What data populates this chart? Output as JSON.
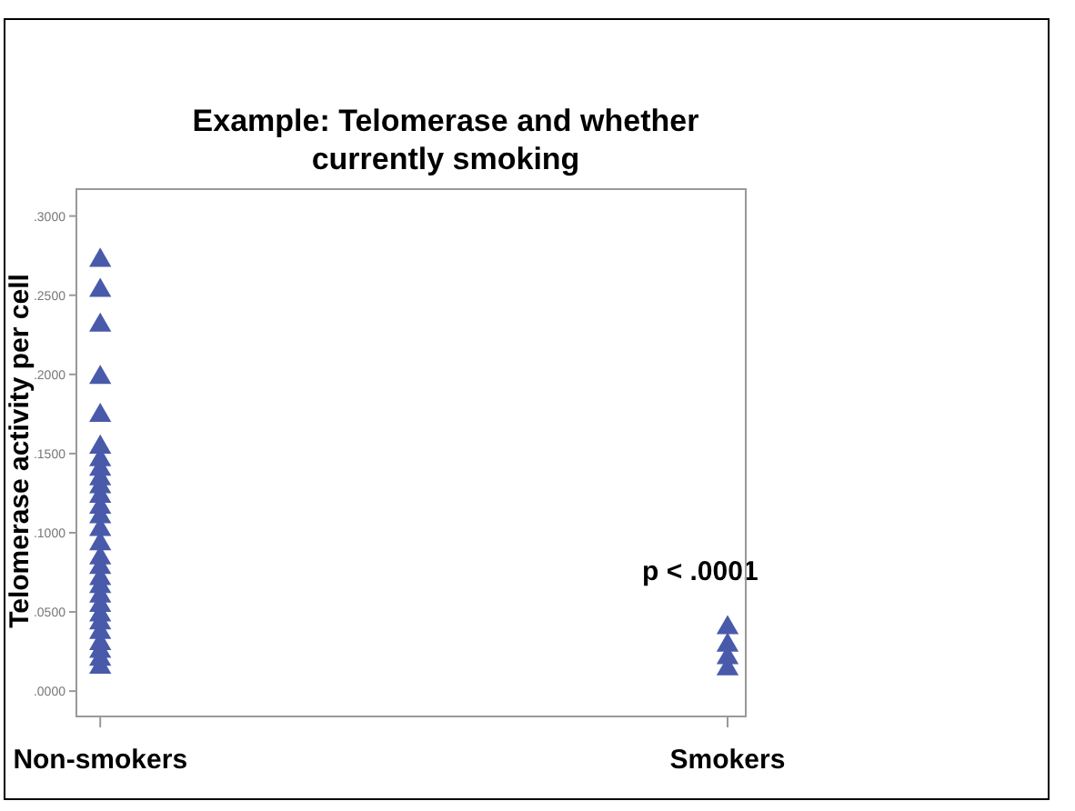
{
  "chart_data": {
    "type": "scatter",
    "title": "Example: Telomerase and whether currently smoking",
    "ylabel": "Telomerase activity per cell",
    "categories": [
      "Non-smokers",
      "Smokers"
    ],
    "series": [
      {
        "color": "#4a5aaa",
        "x": [
          "Non-smokers",
          "Non-smokers",
          "Non-smokers",
          "Non-smokers",
          "Non-smokers",
          "Non-smokers",
          "Non-smokers",
          "Non-smokers",
          "Non-smokers",
          "Non-smokers",
          "Non-smokers",
          "Non-smokers",
          "Non-smokers",
          "Non-smokers",
          "Non-smokers",
          "Non-smokers",
          "Non-smokers",
          "Non-smokers",
          "Non-smokers",
          "Non-smokers",
          "Non-smokers",
          "Non-smokers",
          "Non-smokers",
          "Non-smokers",
          "Non-smokers",
          "Non-smokers",
          "Non-smokers",
          "Non-smokers",
          "Smokers",
          "Smokers",
          "Smokers",
          "Smokers"
        ],
        "values": [
          0.272,
          0.253,
          0.231,
          0.198,
          0.174,
          0.154,
          0.146,
          0.14,
          0.134,
          0.129,
          0.123,
          0.116,
          0.11,
          0.102,
          0.093,
          0.084,
          0.078,
          0.071,
          0.066,
          0.06,
          0.054,
          0.048,
          0.043,
          0.037,
          0.03,
          0.025,
          0.02,
          0.015,
          0.04,
          0.029,
          0.021,
          0.014
        ]
      }
    ],
    "ylim": [
      -0.016,
      0.317
    ],
    "yticks": [
      {
        "value": 0,
        "label": ".0000"
      },
      {
        "value": 0.05,
        "label": ".0500"
      },
      {
        "value": 0.1,
        "label": ".1000"
      },
      {
        "value": 0.15,
        "label": ".1500"
      },
      {
        "value": 0.2,
        "label": ".2000"
      },
      {
        "value": 0.25,
        "label": ".2500"
      },
      {
        "value": 0.3,
        "label": ".3000"
      }
    ],
    "annotations": [
      "p < .0001"
    ],
    "grid": false,
    "marker": "triangle"
  }
}
